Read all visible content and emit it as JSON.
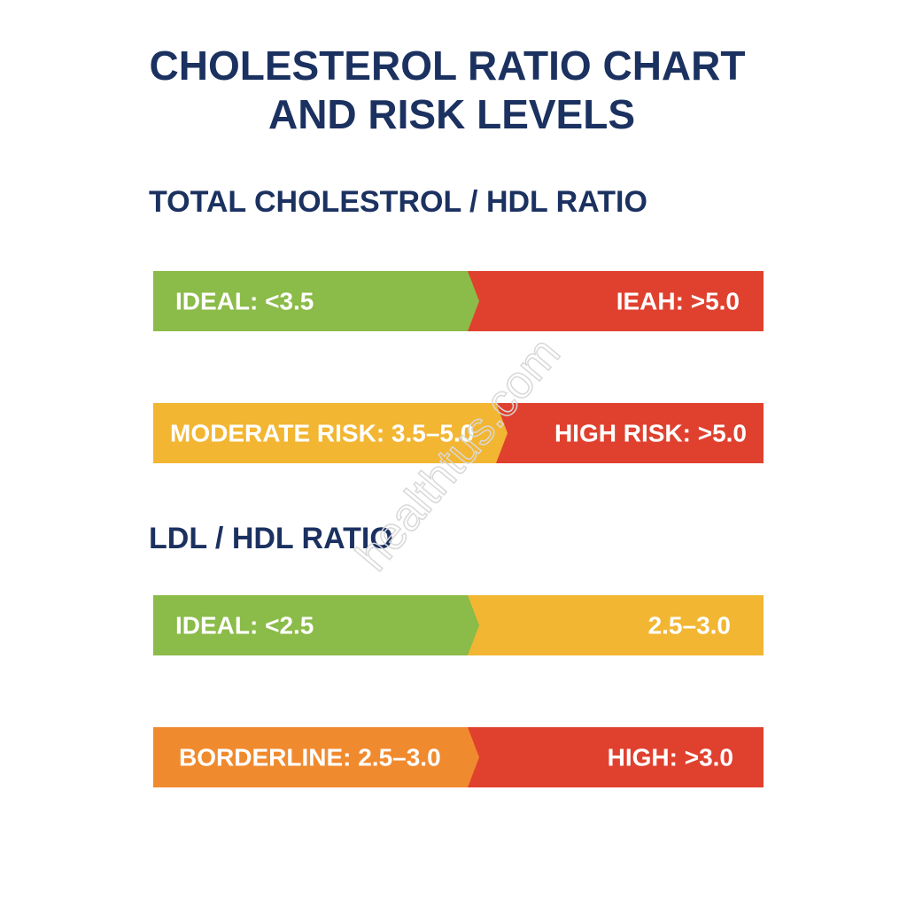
{
  "header": {
    "title_lines": [
      "CHOLESTEROL RATIO CHART",
      "AND RISK LEVELS"
    ]
  },
  "sections": [
    {
      "title": "TOTAL CHOLESTROL / HDL RATIO",
      "bars": [
        {
          "segments": [
            {
              "label": "IDEAL: <3.5",
              "color": "#8bbb48"
            },
            {
              "label": "IEAH: >5.0",
              "color": "#e0412f"
            }
          ]
        },
        {
          "segments": [
            {
              "label": "MODERATE RISK: 3.5–5.0",
              "color": "#f2b632"
            },
            {
              "label": "HIGH RISK: >5.0",
              "color": "#e0412f"
            }
          ]
        }
      ]
    },
    {
      "title": "LDL / HDL RATIO",
      "bars": [
        {
          "segments": [
            {
              "label": "IDEAL: <2.5",
              "color": "#8bbb48"
            },
            {
              "label": "2.5–3.0",
              "color": "#f2b632"
            }
          ]
        },
        {
          "segments": [
            {
              "label": "BORDERLINE: 2.5–3.0",
              "color": "#f08a2e"
            },
            {
              "label": "HIGH: >3.0",
              "color": "#e0412f"
            }
          ]
        }
      ]
    }
  ],
  "watermark": "healthtus.com"
}
